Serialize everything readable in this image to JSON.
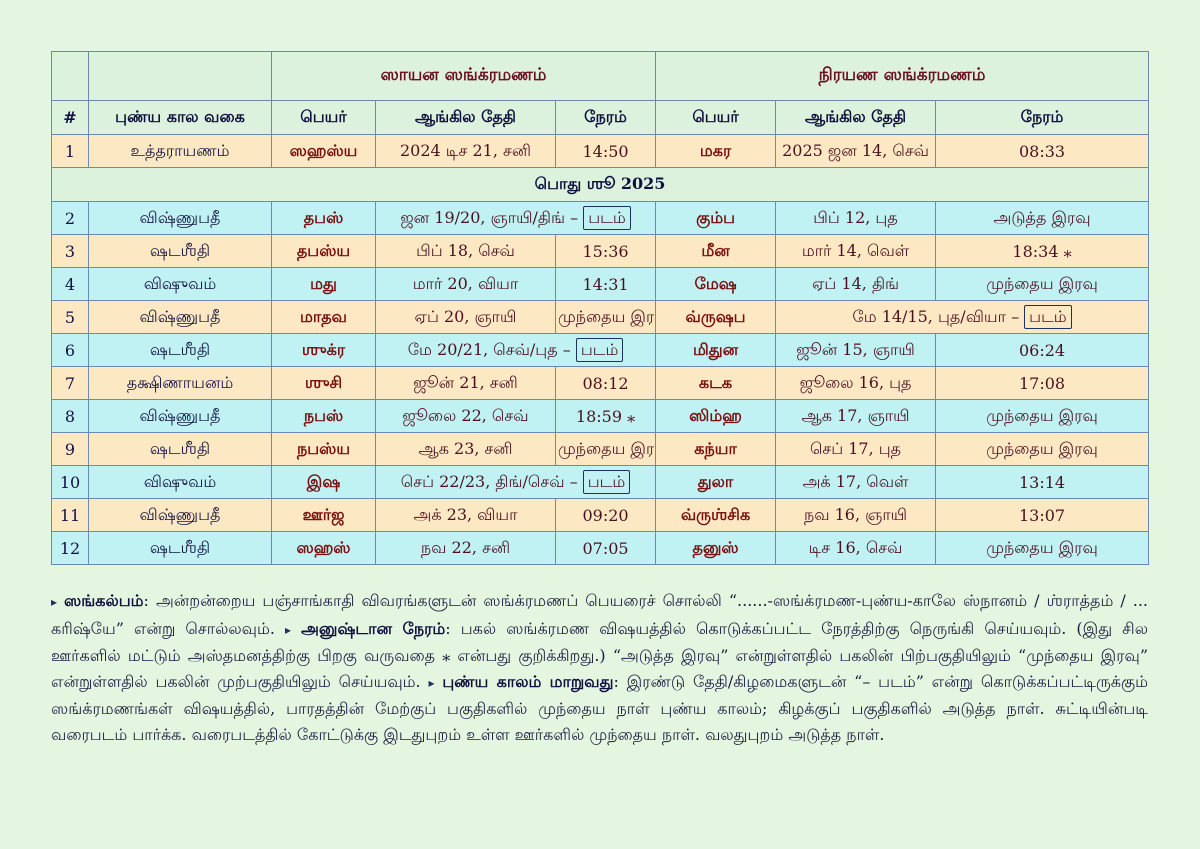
{
  "headers": {
    "group_sayana": "ஸாயன ஸங்க்ரமணம்",
    "group_nirayana": "நிரயண ஸங்க்ரமணம்",
    "num": "#",
    "type": "புண்ய கால வகை",
    "name": "பெயர்",
    "date": "ஆங்கில தேதி",
    "time": "நேரம்"
  },
  "first_row": {
    "num": "1",
    "type": "உத்தராயணம்",
    "s_name": "ஸஹஸ்ய",
    "s_date": "2024 டிச 21, சனி",
    "s_time": "14:50",
    "n_name": "மகர",
    "n_date": "2025 ஜன 14, செவ்",
    "n_time": "08:33"
  },
  "subheader": "பொது ஶூ 2025",
  "rows": [
    {
      "num": "2",
      "type": "விஷ்ணுபதீ",
      "s_name": "தபஸ்",
      "s_date": "ஜன 19/20, ஞாயி/திங் – ",
      "s_pill": "படம்",
      "s_time": "",
      "n_name": "கும்ப",
      "n_date": "பிப் 12, புத",
      "n_pill": "",
      "n_time": "அடுத்த இரவு",
      "shade": "cyan"
    },
    {
      "num": "3",
      "type": "ஷடஶீதி",
      "s_name": "தபஸ்ய",
      "s_date": "பிப் 18, செவ்",
      "s_pill": "",
      "s_time": "15:36",
      "n_name": "மீன",
      "n_date": "மார் 14, வெள்",
      "n_pill": "",
      "n_time": "18:34 ⁎",
      "shade": "peach"
    },
    {
      "num": "4",
      "type": "விஷுவம்",
      "s_name": "மது",
      "s_date": "மார் 20, வியா",
      "s_pill": "",
      "s_time": "14:31",
      "n_name": "மேஷ",
      "n_date": "ஏப் 14, திங்",
      "n_pill": "",
      "n_time": "முந்தைய இரவு",
      "shade": "cyan"
    },
    {
      "num": "5",
      "type": "விஷ்ணுபதீ",
      "s_name": "மாதவ",
      "s_date": "ஏப் 20, ஞாயி",
      "s_pill": "",
      "s_time": "முந்தைய இரவு",
      "n_name": "வ்ருஷப",
      "n_date": "மே 14/15, புத/வியா – ",
      "n_pill": "படம்",
      "n_time": "",
      "shade": "peach"
    },
    {
      "num": "6",
      "type": "ஷடஶீதி",
      "s_name": "ஶுக்ர",
      "s_date": "மே 20/21, செவ்/புத – ",
      "s_pill": "படம்",
      "s_time": "",
      "n_name": "மிதுன",
      "n_date": "ஜூன் 15, ஞாயி",
      "n_pill": "",
      "n_time": "06:24",
      "shade": "cyan"
    },
    {
      "num": "7",
      "type": "தக்ஷிணாயனம்",
      "s_name": "ஶுசி",
      "s_date": "ஜூன் 21, சனி",
      "s_pill": "",
      "s_time": "08:12",
      "n_name": "கடக",
      "n_date": "ஜூலை 16, புத",
      "n_pill": "",
      "n_time": "17:08",
      "shade": "peach"
    },
    {
      "num": "8",
      "type": "விஷ்ணுபதீ",
      "s_name": "நபஸ்",
      "s_date": "ஜூலை 22, செவ்",
      "s_pill": "",
      "s_time": "18:59 ⁎",
      "n_name": "ஸிம்ஹ",
      "n_date": "ஆக 17, ஞாயி",
      "n_pill": "",
      "n_time": "முந்தைய இரவு",
      "shade": "cyan"
    },
    {
      "num": "9",
      "type": "ஷடஶீதி",
      "s_name": "நபஸ்ய",
      "s_date": "ஆக 23, சனி",
      "s_pill": "",
      "s_time": "முந்தைய இரவு",
      "n_name": "கந்யா",
      "n_date": "செப் 17, புத",
      "n_pill": "",
      "n_time": "முந்தைய இரவு",
      "shade": "peach"
    },
    {
      "num": "10",
      "type": "விஷுவம்",
      "s_name": "இஷ",
      "s_date": "செப் 22/23, திங்/செவ் – ",
      "s_pill": "படம்",
      "s_time": "",
      "n_name": "துலா",
      "n_date": "அக் 17, வெள்",
      "n_pill": "",
      "n_time": "13:14",
      "shade": "cyan"
    },
    {
      "num": "11",
      "type": "விஷ்ணுபதீ",
      "s_name": "ஊர்ஜ",
      "s_date": "அக் 23, வியா",
      "s_pill": "",
      "s_time": "09:20",
      "n_name": "வ்ருஶ்சிக",
      "n_date": "நவ 16, ஞாயி",
      "n_pill": "",
      "n_time": "13:07",
      "shade": "peach"
    },
    {
      "num": "12",
      "type": "ஷடஶீதி",
      "s_name": "ஸஹஸ்",
      "s_date": "நவ 22, சனி",
      "s_pill": "",
      "s_time": "07:05",
      "n_name": "தனுஸ்",
      "n_date": "டிச 16, செவ்",
      "n_pill": "",
      "n_time": "முந்தைய இரவு",
      "shade": "cyan"
    }
  ],
  "notes": {
    "bullet": "▸",
    "k1": "ஸங்கல்பம்",
    "t1": ": அன்றன்றைய பஞ்சாங்காதி விவரங்களுடன் ஸங்க்ரமணப் பெயரைச் சொல்லி “......-ஸங்க்ரமண-புண்ய-காலே ஸ்நானம் / ஶ்ராத்தம் / ... கரிஷ்யே” என்று சொல்லவும். ",
    "k2": "அனுஷ்டான நேரம்",
    "t2": ": பகல் ஸங்க்ரமண விஷயத்தில் கொடுக்கப்பட்ட நேரத்திற்கு நெருங்கி செய்யவும். (இது சில ஊர்களில் மட்டும் அஸ்தமனத்திற்கு பிறகு வருவதை ⁎ என்பது குறிக்கிறது.) “அடுத்த இரவு” என்றுள்ளதில் பகலின் பிற்பகுதியிலும் “முந்தைய இரவு” என்றுள்ளதில் பகலின் முற்பகுதியிலும் செய்யவும். ",
    "k3": "புண்ய காலம் மாறுவது",
    "t3": ": இரண்டு தேதி/கிழமைகளுடன் “– படம்” என்று கொடுக்கப்பட்டிருக்கும் ஸங்க்ரமணங்கள் விஷயத்தில், பாரதத்தின் மேற்குப் பகுதிகளில் முந்தைய நாள் புண்ய காலம்; கிழக்குப் பகுதிகளில் அடுத்த நாள். சுட்டியின்படி வரைபடம் பார்க்க. வரைபடத்தில் கோட்டுக்கு இடதுபுறம் உள்ள ஊர்களில் முந்தைய நாள். வலதுபுறம் அடுத்த நாள்."
  }
}
